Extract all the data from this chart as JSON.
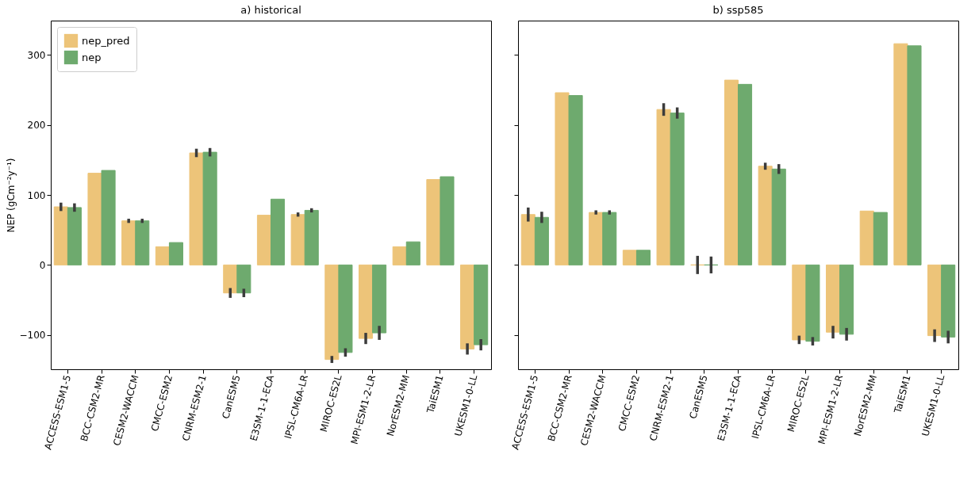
{
  "chart_data": [
    {
      "type": "bar",
      "title": "a) historical",
      "ylabel": "NEP (gCm⁻²y⁻¹)",
      "categories": [
        "ACCESS-ESM1-5",
        "BCC-CSM2-MR",
        "CESM2-WACCM",
        "CMCC-ESM2",
        "CNRM-ESM2-1",
        "CanESM5",
        "E3SM-1-1-ECA",
        "IPSL-CM6A-LR",
        "MIROC-ES2L",
        "MPI-ESM1-2-LR",
        "NorESM2-MM",
        "TaiESM1",
        "UKESM1-0-LL"
      ],
      "series": [
        {
          "name": "nep_pred",
          "color": "#edc479",
          "values": [
            83,
            131,
            63,
            26,
            160,
            -40,
            71,
            72,
            -135,
            -105,
            26,
            122,
            -120
          ],
          "errors": [
            6,
            null,
            3,
            null,
            6,
            7,
            null,
            3,
            5,
            8,
            null,
            null,
            8
          ]
        },
        {
          "name": "nep",
          "color": "#6eaa6e",
          "values": [
            82,
            135,
            63,
            32,
            161,
            -40,
            94,
            78,
            -125,
            -97,
            33,
            126,
            -114
          ],
          "errors": [
            6,
            null,
            3,
            null,
            6,
            6,
            null,
            3,
            6,
            10,
            null,
            null,
            8
          ]
        }
      ],
      "ylim": [
        -149,
        349
      ],
      "yticks": [
        -100,
        0,
        100,
        200,
        300
      ],
      "legend": "top left"
    },
    {
      "type": "bar",
      "title": "b) ssp585",
      "categories": [
        "ACCESS-ESM1-5",
        "BCC-CSM2-MR",
        "CESM2-WACCM",
        "CMCC-ESM2",
        "CNRM-ESM2-1",
        "CanESM5",
        "E3SM-1-1-ECA",
        "IPSL-CM6A-LR",
        "MIROC-ES2L",
        "MPI-ESM1-2-LR",
        "NorESM2-MM",
        "TaiESM1",
        "UKESM1-0-LL"
      ],
      "series": [
        {
          "color": "#edc479",
          "values": [
            72,
            246,
            75,
            21,
            222,
            0,
            264,
            141,
            -107,
            -96,
            77,
            316,
            -101
          ],
          "errors": [
            10,
            null,
            3,
            null,
            9,
            13,
            null,
            5,
            6,
            9,
            null,
            null,
            9
          ]
        },
        {
          "color": "#6eaa6e",
          "values": [
            68,
            242,
            75,
            21,
            217,
            0,
            258,
            137,
            -109,
            -99,
            75,
            313,
            -103
          ],
          "errors": [
            8,
            null,
            3,
            null,
            8,
            12,
            null,
            7,
            6,
            9,
            null,
            null,
            9
          ]
        }
      ],
      "ylim": [
        -149,
        349
      ],
      "yticks": [
        -100,
        0,
        100,
        200,
        300
      ],
      "tick_labels": "x"
    }
  ]
}
